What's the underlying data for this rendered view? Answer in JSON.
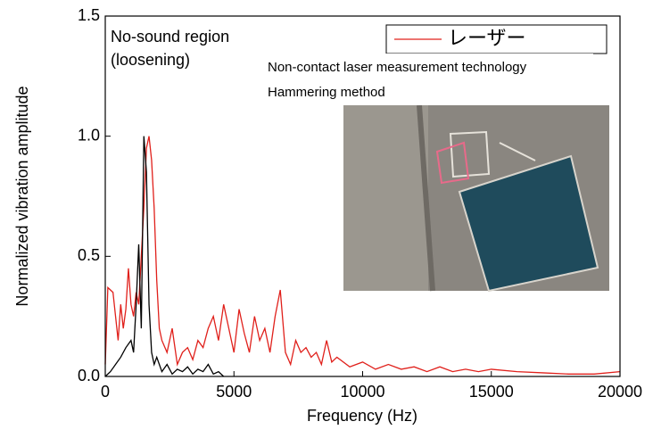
{
  "chart_data": {
    "type": "line",
    "xlabel": "Frequency (Hz)",
    "ylabel": "Normalized vibration amplitude",
    "xlim": [
      0,
      20000
    ],
    "xticks": [
      0,
      5000,
      10000,
      15000,
      20000
    ],
    "ylim": [
      0,
      1.5
    ],
    "yticks": [
      {
        "value": 0,
        "label": "0.0"
      },
      0.5,
      {
        "value": 1,
        "label": "1.0"
      },
      1.5
    ],
    "legend": "upper right",
    "annotations": [
      "No-sound region",
      "(loosening)",
      "Non-contact laser measurement technology",
      "Hammering method"
    ],
    "series": [
      {
        "name": "レーザー",
        "color": "#e0201b",
        "x": [
          0,
          100,
          300,
          400,
          500,
          600,
          700,
          800,
          900,
          1000,
          1100,
          1200,
          1300,
          1400,
          1500,
          1600,
          1700,
          1800,
          1900,
          2000,
          2100,
          2200,
          2400,
          2600,
          2800,
          3000,
          3200,
          3400,
          3600,
          3800,
          4000,
          4200,
          4400,
          4600,
          4800,
          5000,
          5200,
          5400,
          5600,
          5800,
          6000,
          6200,
          6400,
          6600,
          6800,
          7000,
          7200,
          7400,
          7600,
          7800,
          8000,
          8200,
          8400,
          8600,
          8800,
          9000,
          9500,
          10000,
          10500,
          11000,
          11500,
          12000,
          12500,
          13000,
          13500,
          14000,
          14500,
          15000,
          16000,
          17000,
          18000,
          19000,
          20000
        ],
        "values": [
          0.05,
          0.37,
          0.35,
          0.25,
          0.15,
          0.3,
          0.2,
          0.28,
          0.45,
          0.3,
          0.25,
          0.35,
          0.3,
          0.5,
          0.7,
          0.95,
          1.0,
          0.9,
          0.7,
          0.4,
          0.2,
          0.15,
          0.1,
          0.2,
          0.05,
          0.1,
          0.12,
          0.07,
          0.15,
          0.12,
          0.2,
          0.25,
          0.15,
          0.3,
          0.2,
          0.1,
          0.28,
          0.18,
          0.1,
          0.25,
          0.15,
          0.2,
          0.1,
          0.25,
          0.36,
          0.1,
          0.05,
          0.15,
          0.1,
          0.12,
          0.08,
          0.1,
          0.05,
          0.15,
          0.06,
          0.08,
          0.04,
          0.06,
          0.03,
          0.05,
          0.03,
          0.04,
          0.02,
          0.04,
          0.02,
          0.03,
          0.02,
          0.03,
          0.02,
          0.015,
          0.01,
          0.01,
          0.02
        ]
      },
      {
        "color": "#000000",
        "x": [
          0,
          200,
          400,
          600,
          800,
          1000,
          1100,
          1200,
          1300,
          1400,
          1500,
          1600,
          1700,
          1800,
          1900,
          2000,
          2200,
          2400,
          2600,
          2800,
          3000,
          3200,
          3400,
          3600,
          3800,
          4000,
          4200,
          4400,
          4600
        ],
        "values": [
          0,
          0.02,
          0.05,
          0.08,
          0.12,
          0.15,
          0.1,
          0.3,
          0.55,
          0.2,
          1.0,
          0.85,
          0.3,
          0.1,
          0.05,
          0.08,
          0.02,
          0.05,
          0.01,
          0.03,
          0.02,
          0.04,
          0.01,
          0.03,
          0.02,
          0.05,
          0.01,
          0.02,
          0
        ]
      }
    ]
  }
}
